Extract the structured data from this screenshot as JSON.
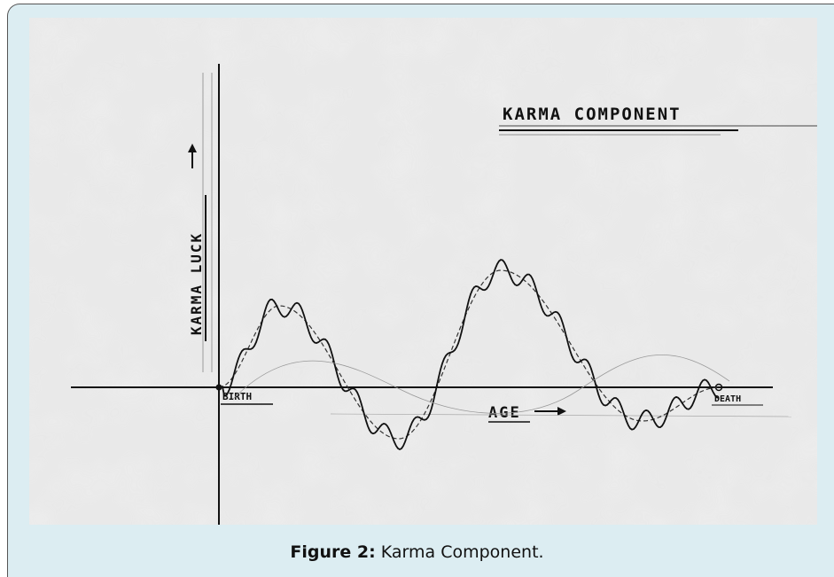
{
  "sketch": {
    "title": "KARMA COMPONENT",
    "y_label": "KARMA LUCK",
    "x_label": "AGE",
    "start_label": "BIRTH",
    "end_label": "DEATH"
  },
  "caption": {
    "label": "Figure 2:",
    "text": "Karma Component."
  }
}
